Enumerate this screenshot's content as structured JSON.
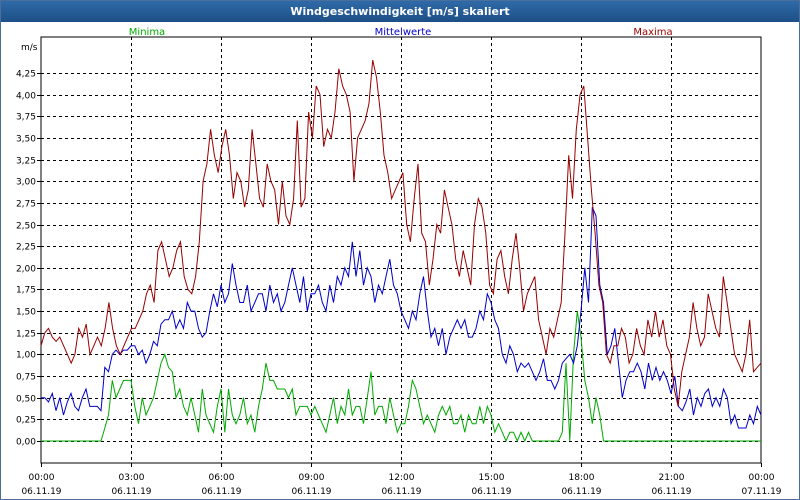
{
  "window": {
    "title": "Windgeschwindigkeit [m/s] skaliert"
  },
  "colors": {
    "min": "#00aa00",
    "mean": "#0000cc",
    "max": "#990000",
    "title_bg": "#1d4f86"
  },
  "chart_data": {
    "type": "line",
    "title": "Windgeschwindigkeit [m/s] skaliert",
    "ylabel": "m/s",
    "ylim": [
      0,
      4.6
    ],
    "xlim": [
      0,
      24
    ],
    "yticks": [
      "0,00",
      "0,25",
      "0,50",
      "0,75",
      "1,00",
      "1,25",
      "1,50",
      "1,75",
      "2,00",
      "2,25",
      "2,50",
      "2,75",
      "3,00",
      "3,25",
      "3,50",
      "3,75",
      "4,00",
      "4,25"
    ],
    "xticks": [
      {
        "time": "00:00",
        "date": "06.11.19"
      },
      {
        "time": "03:00",
        "date": "06.11.19"
      },
      {
        "time": "06:00",
        "date": "06.11.19"
      },
      {
        "time": "09:00",
        "date": "06.11.19"
      },
      {
        "time": "12:00",
        "date": "06.11.19"
      },
      {
        "time": "15:00",
        "date": "06.11.19"
      },
      {
        "time": "18:00",
        "date": "06.11.19"
      },
      {
        "time": "21:00",
        "date": "06.11.19"
      },
      {
        "time": "00:00",
        "date": "07.11.19"
      }
    ],
    "series": [
      {
        "name": "Minima",
        "key": "min",
        "values": [
          0,
          0,
          0,
          0,
          0,
          0,
          0,
          0,
          0,
          0,
          0,
          0,
          0,
          0,
          0,
          0,
          0,
          0.15,
          0.3,
          0.7,
          0.5,
          0.6,
          0.7,
          0.7,
          0.7,
          0.4,
          0.2,
          0.5,
          0.3,
          0.4,
          0.5,
          0.7,
          0.9,
          1.0,
          0.85,
          0.8,
          0.5,
          0.6,
          0.4,
          0.3,
          0.5,
          0.3,
          0.1,
          0.6,
          0.3,
          0.2,
          0.1,
          0.4,
          0.6,
          0.1,
          0.6,
          0.3,
          0.2,
          0.3,
          0.5,
          0.2,
          0.3,
          0.1,
          0.4,
          0.6,
          0.9,
          0.7,
          0.7,
          0.6,
          0.6,
          0.6,
          0.5,
          0.6,
          0.3,
          0.4,
          0.4,
          0.4,
          0.3,
          0.4,
          0.3,
          0.2,
          0.1,
          0.3,
          0.5,
          0.2,
          0.4,
          0.3,
          0.6,
          0.3,
          0.4,
          0.4,
          0.2,
          0.5,
          0.8,
          0.3,
          0.4,
          0.4,
          0.2,
          0.5,
          0.3,
          0.1,
          0.2,
          0.2,
          0.4,
          0.7,
          0.6,
          0.4,
          0.2,
          0.3,
          0.2,
          0.1,
          0.3,
          0.4,
          0.3,
          0.4,
          0.2,
          0.2,
          0.3,
          0.1,
          0.3,
          0.2,
          0.2,
          0.4,
          0.2,
          0.4,
          0.3,
          0.1,
          0.2,
          0.1,
          0,
          0.1,
          0.1,
          0,
          0.1,
          0,
          0.1,
          0,
          0,
          0,
          0,
          0,
          0,
          0,
          0,
          0.1,
          0.9,
          0,
          1.0,
          1.5,
          1.2,
          0.7,
          0.5,
          0.2,
          0.5,
          0.3,
          0,
          0,
          0,
          0,
          0,
          0,
          0,
          0,
          0,
          0,
          0,
          0,
          0,
          0,
          0,
          0,
          0,
          0,
          0,
          0,
          0,
          0,
          0,
          0,
          0,
          0,
          0,
          0,
          0,
          0,
          0,
          0,
          0,
          0,
          0,
          0,
          0,
          0,
          0,
          0,
          0,
          0,
          0
        ]
      },
      {
        "name": "Mittelwerte",
        "key": "mean",
        "values": [
          0.5,
          0.5,
          0.45,
          0.55,
          0.35,
          0.5,
          0.3,
          0.45,
          0.55,
          0.4,
          0.35,
          0.5,
          0.6,
          0.4,
          0.4,
          0.4,
          0.35,
          0.85,
          0.8,
          1.0,
          1.05,
          1.0,
          1.05,
          1.05,
          1.1,
          1.1,
          1.0,
          1.05,
          0.9,
          1.0,
          1.15,
          1.1,
          1.35,
          1.4,
          1.4,
          1.5,
          1.3,
          1.4,
          1.3,
          1.6,
          1.5,
          1.5,
          1.3,
          1.2,
          1.25,
          1.5,
          1.7,
          1.55,
          1.8,
          1.6,
          1.7,
          2.05,
          1.8,
          1.6,
          1.6,
          1.8,
          1.5,
          1.6,
          1.7,
          1.7,
          1.5,
          1.8,
          1.6,
          1.7,
          1.5,
          1.6,
          1.8,
          2.0,
          1.8,
          1.6,
          1.9,
          1.5,
          1.7,
          1.7,
          1.8,
          1.6,
          1.5,
          1.8,
          1.6,
          1.9,
          1.8,
          2.0,
          1.9,
          2.3,
          1.9,
          2.2,
          1.8,
          2.0,
          1.9,
          1.6,
          1.8,
          1.7,
          1.9,
          2.1,
          1.8,
          1.7,
          1.5,
          1.4,
          1.3,
          1.5,
          1.4,
          1.7,
          1.9,
          1.5,
          1.2,
          1.3,
          1.1,
          1.3,
          1.0,
          1.2,
          1.3,
          1.4,
          1.3,
          1.4,
          1.2,
          1.2,
          1.3,
          1.5,
          1.4,
          1.7,
          1.6,
          1.4,
          1.3,
          1.0,
          0.9,
          1.1,
          1.0,
          0.8,
          0.9,
          0.85,
          0.9,
          0.8,
          0.7,
          0.8,
          0.95,
          0.7,
          0.7,
          0.6,
          0.7,
          0.9,
          0.95,
          1.0,
          0.9,
          1.1,
          1.5,
          2.0,
          1.6,
          2.7,
          2.6,
          1.8,
          1.6,
          1.0,
          1.1,
          1.3,
          0.9,
          0.5,
          0.7,
          0.8,
          0.8,
          0.9,
          0.8,
          0.6,
          0.9,
          0.7,
          0.85,
          0.7,
          0.8,
          0.7,
          0.55,
          0.75,
          0.4,
          0.35,
          0.45,
          0.6,
          0.3,
          0.5,
          0.4,
          0.55,
          0.6,
          0.4,
          0.5,
          0.4,
          0.6,
          0.5,
          0.2,
          0.3,
          0.15,
          0.15,
          0.15,
          0.3,
          0.2,
          0.4,
          0.3
        ]
      },
      {
        "name": "Maxima",
        "key": "max",
        "values": [
          1.1,
          1.25,
          1.3,
          1.2,
          1.15,
          1.2,
          1.1,
          1.0,
          0.9,
          1.0,
          1.3,
          1.2,
          1.35,
          1.0,
          1.1,
          1.2,
          1.1,
          1.3,
          1.6,
          1.3,
          1.1,
          1.0,
          1.1,
          1.2,
          1.3,
          1.3,
          1.4,
          1.5,
          1.7,
          1.8,
          1.6,
          2.2,
          2.3,
          2.1,
          1.9,
          2.0,
          2.2,
          2.3,
          1.9,
          1.75,
          1.7,
          1.9,
          2.3,
          3.0,
          3.2,
          3.6,
          3.3,
          3.1,
          3.4,
          3.6,
          3.3,
          2.8,
          3.1,
          3.0,
          2.7,
          2.9,
          3.6,
          3.2,
          2.8,
          2.7,
          3.2,
          3.0,
          2.9,
          2.5,
          3.0,
          2.6,
          2.5,
          2.8,
          3.7,
          2.7,
          2.8,
          3.8,
          3.5,
          4.1,
          4.0,
          3.4,
          3.6,
          3.5,
          3.8,
          4.3,
          4.1,
          4.0,
          3.8,
          3.0,
          3.5,
          3.6,
          3.7,
          3.9,
          4.4,
          4.2,
          3.8,
          3.3,
          3.1,
          2.8,
          2.9,
          3.0,
          3.1,
          2.5,
          2.3,
          2.8,
          3.2,
          2.4,
          2.3,
          1.8,
          2.1,
          2.5,
          2.4,
          2.9,
          2.7,
          2.5,
          2.1,
          1.9,
          2.2,
          2.0,
          1.8,
          2.5,
          2.8,
          2.7,
          2.4,
          1.8,
          1.7,
          2.1,
          2.2,
          1.9,
          1.7,
          2.1,
          2.4,
          2.0,
          1.5,
          1.7,
          1.8,
          1.9,
          1.4,
          1.2,
          1.0,
          1.3,
          1.2,
          1.4,
          1.6,
          2.4,
          3.3,
          2.8,
          3.6,
          4.0,
          4.1,
          3.5,
          2.9,
          2.4,
          1.8,
          1.6,
          1.0,
          0.9,
          1.1,
          1.1,
          1.3,
          1.2,
          0.9,
          1.0,
          1.3,
          1.1,
          1.0,
          1.4,
          1.2,
          1.5,
          1.2,
          1.4,
          1.1,
          1.0,
          0.6,
          0.4,
          0.8,
          1.0,
          1.2,
          1.6,
          1.3,
          1.1,
          1.2,
          1.7,
          1.5,
          1.3,
          1.2,
          1.9,
          1.6,
          1.3,
          1.0,
          0.9,
          0.8,
          1.0,
          1.4,
          0.8,
          0.85,
          0.9
        ]
      }
    ]
  }
}
